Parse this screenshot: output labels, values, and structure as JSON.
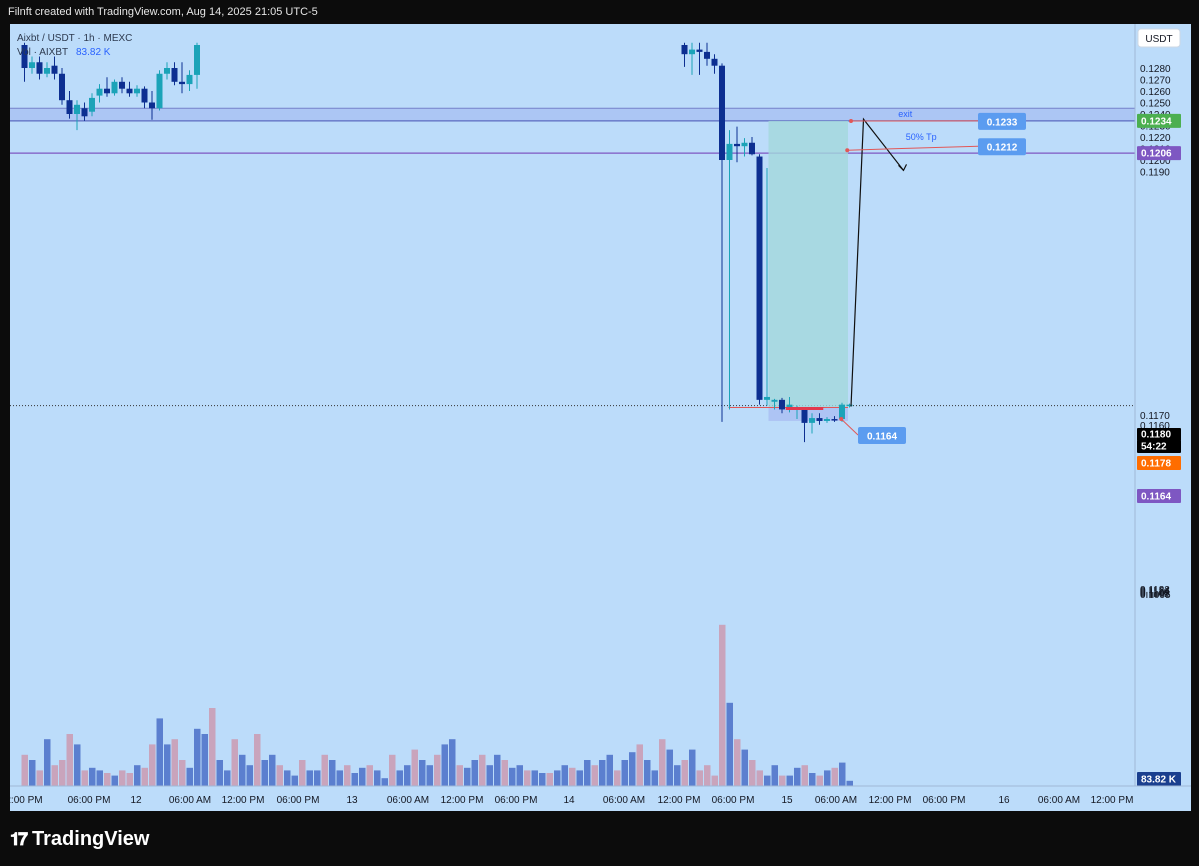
{
  "header": {
    "caption": "Filnft created with TradingView.com, Aug 14, 2025 21:05 UTC-5"
  },
  "legend": {
    "symbol_line": "Aixbt / USDT · 1h · MEXC",
    "volume_label": "Vol · AIXBT",
    "volume_value": "83.82 K"
  },
  "axis": {
    "currency": "USDT"
  },
  "chart_data": {
    "type": "candlestick",
    "title": "",
    "y_scale": "price (upper), compressed below 0.1140",
    "y_ticks": [
      "0.1280",
      "0.1270",
      "0.1260",
      "0.1250",
      "0.1240",
      "0.1230",
      "0.1220",
      "0.1210",
      "0.1200",
      "0.1190",
      "0.1170",
      "0.1160",
      "0.1150",
      "0.1140",
      "0.1132",
      "0.1124",
      "0.1116",
      "0.1109",
      "0.1102",
      "0.1095"
    ],
    "x_ticks": [
      "2:00 PM",
      "06:00 PM",
      "12",
      "06:00 AM",
      "12:00 PM",
      "06:00 PM",
      "13",
      "06:00 AM",
      "12:00 PM",
      "06:00 PM",
      "14",
      "06:00 AM",
      "12:00 PM",
      "06:00 PM",
      "15",
      "06:00 AM",
      "12:00 PM",
      "06:00 PM",
      "16",
      "06:00 AM",
      "12:00 PM"
    ],
    "price_badges": [
      {
        "value": "0.1234",
        "color": "#4caf50"
      },
      {
        "value": "0.1206",
        "color": "#7e57c2"
      },
      {
        "value": "0.1180",
        "color": "#000000"
      },
      {
        "value": "54:22",
        "color": "#000000"
      },
      {
        "value": "0.1178",
        "color": "#ff6d00"
      },
      {
        "value": "0.1164",
        "color": "#7e57c2"
      },
      {
        "value": "83.82 K",
        "color": "#1a3f8f"
      }
    ],
    "levels": [
      {
        "price": 0.1234,
        "color": "#5c6bc0"
      },
      {
        "price": 0.1206,
        "color": "#7e57c2"
      },
      {
        "price": 0.118,
        "color": "#333333",
        "style": "dotted"
      }
    ],
    "zone": {
      "low": 0.1234,
      "high": 0.1245
    },
    "annotations": [
      {
        "text": "exit"
      },
      {
        "text": "50% Tp"
      }
    ],
    "callouts": [
      "0.1233",
      "0.1212",
      "0.1164"
    ],
    "candles": [
      {
        "i": 0,
        "o": 0.13,
        "h": 0.1302,
        "l": 0.1268,
        "c": 0.128
      },
      {
        "i": 1,
        "o": 0.128,
        "h": 0.129,
        "l": 0.1275,
        "c": 0.1285
      },
      {
        "i": 2,
        "o": 0.1285,
        "h": 0.129,
        "l": 0.127,
        "c": 0.1275
      },
      {
        "i": 3,
        "o": 0.1275,
        "h": 0.1285,
        "l": 0.1272,
        "c": 0.128
      },
      {
        "i": 4,
        "o": 0.1282,
        "h": 0.129,
        "l": 0.127,
        "c": 0.1275
      },
      {
        "i": 5,
        "o": 0.1275,
        "h": 0.128,
        "l": 0.1248,
        "c": 0.1252
      },
      {
        "i": 6,
        "o": 0.1252,
        "h": 0.126,
        "l": 0.1236,
        "c": 0.124
      },
      {
        "i": 7,
        "o": 0.124,
        "h": 0.1252,
        "l": 0.1226,
        "c": 0.1248
      },
      {
        "i": 8,
        "o": 0.1245,
        "h": 0.125,
        "l": 0.1234,
        "c": 0.1238
      },
      {
        "i": 9,
        "o": 0.1242,
        "h": 0.1258,
        "l": 0.1238,
        "c": 0.1254
      },
      {
        "i": 10,
        "o": 0.1256,
        "h": 0.1266,
        "l": 0.125,
        "c": 0.1262
      },
      {
        "i": 11,
        "o": 0.1262,
        "h": 0.1272,
        "l": 0.1255,
        "c": 0.1258
      },
      {
        "i": 12,
        "o": 0.1258,
        "h": 0.127,
        "l": 0.1256,
        "c": 0.1268
      },
      {
        "i": 13,
        "o": 0.1268,
        "h": 0.1272,
        "l": 0.1258,
        "c": 0.1262
      },
      {
        "i": 14,
        "o": 0.1262,
        "h": 0.1268,
        "l": 0.1255,
        "c": 0.1258
      },
      {
        "i": 15,
        "o": 0.1258,
        "h": 0.1265,
        "l": 0.1255,
        "c": 0.1262
      },
      {
        "i": 16,
        "o": 0.1262,
        "h": 0.1264,
        "l": 0.1245,
        "c": 0.125
      },
      {
        "i": 17,
        "o": 0.125,
        "h": 0.126,
        "l": 0.1235,
        "c": 0.1245
      },
      {
        "i": 18,
        "o": 0.1245,
        "h": 0.1278,
        "l": 0.1243,
        "c": 0.1275
      },
      {
        "i": 19,
        "o": 0.1275,
        "h": 0.1285,
        "l": 0.127,
        "c": 0.128
      },
      {
        "i": 20,
        "o": 0.128,
        "h": 0.1285,
        "l": 0.1265,
        "c": 0.1268
      },
      {
        "i": 21,
        "o": 0.1268,
        "h": 0.1285,
        "l": 0.1258,
        "c": 0.1266
      },
      {
        "i": 22,
        "o": 0.1266,
        "h": 0.1278,
        "l": 0.126,
        "c": 0.1274
      },
      {
        "i": 23,
        "o": 0.1274,
        "h": 0.1302,
        "l": 0.1262,
        "c": 0.13
      },
      {
        "i": 88,
        "o": 0.13,
        "h": 0.1302,
        "l": 0.1281,
        "c": 0.1292
      },
      {
        "i": 89,
        "o": 0.1292,
        "h": 0.1302,
        "l": 0.1274,
        "c": 0.1296
      },
      {
        "i": 90,
        "o": 0.1296,
        "h": 0.1302,
        "l": 0.1274,
        "c": 0.1294
      },
      {
        "i": 91,
        "o": 0.1294,
        "h": 0.1302,
        "l": 0.1282,
        "c": 0.1288
      },
      {
        "i": 92,
        "o": 0.1288,
        "h": 0.1292,
        "l": 0.1275,
        "c": 0.1282
      },
      {
        "i": 93,
        "o": 0.1282,
        "h": 0.1284,
        "l": 0.1163,
        "c": 0.12
      },
      {
        "i": 94,
        "o": 0.12,
        "h": 0.1226,
        "l": 0.1176,
        "c": 0.1214
      },
      {
        "i": 95,
        "o": 0.1214,
        "h": 0.1229,
        "l": 0.1198,
        "c": 0.1212
      },
      {
        "i": 96,
        "o": 0.1212,
        "h": 0.1219,
        "l": 0.1203,
        "c": 0.1215
      },
      {
        "i": 97,
        "o": 0.1215,
        "h": 0.122,
        "l": 0.1204,
        "c": 0.1205
      },
      {
        "i": 98,
        "o": 0.1203,
        "h": 0.1205,
        "l": 0.1181,
        "c": 0.1186
      },
      {
        "i": 99,
        "o": 0.1186,
        "h": 0.1193,
        "l": 0.118,
        "c": 0.1189
      },
      {
        "i": 100,
        "o": 0.1184,
        "h": 0.1187,
        "l": 0.1176,
        "c": 0.1186
      },
      {
        "i": 101,
        "o": 0.1186,
        "h": 0.1188,
        "l": 0.1172,
        "c": 0.1176
      },
      {
        "i": 102,
        "o": 0.1176,
        "h": 0.1189,
        "l": 0.1173,
        "c": 0.1181
      },
      {
        "i": 103,
        "o": 0.1177,
        "h": 0.118,
        "l": 0.1166,
        "c": 0.1178
      },
      {
        "i": 104,
        "o": 0.1177,
        "h": 0.1178,
        "l": 0.1142,
        "c": 0.1162
      },
      {
        "i": 105,
        "o": 0.1162,
        "h": 0.1172,
        "l": 0.1151,
        "c": 0.1167
      },
      {
        "i": 106,
        "o": 0.1167,
        "h": 0.1172,
        "l": 0.116,
        "c": 0.1164
      },
      {
        "i": 107,
        "o": 0.1164,
        "h": 0.1168,
        "l": 0.1162,
        "c": 0.1166
      },
      {
        "i": 108,
        "o": 0.1166,
        "h": 0.1169,
        "l": 0.1163,
        "c": 0.1165
      },
      {
        "i": 109,
        "o": 0.1166,
        "h": 0.1183,
        "l": 0.1163,
        "c": 0.1181
      },
      {
        "i": 110,
        "o": 0.118,
        "h": 0.1182,
        "l": 0.1178,
        "c": 0.1181
      }
    ],
    "volume": [
      {
        "i": 0,
        "v": 6.0
      },
      {
        "i": 1,
        "v": 5.0
      },
      {
        "i": 2,
        "v": 3.0
      },
      {
        "i": 3,
        "v": 9.0
      },
      {
        "i": 4,
        "v": 4.0
      },
      {
        "i": 5,
        "v": 5.0
      },
      {
        "i": 6,
        "v": 10.0
      },
      {
        "i": 7,
        "v": 8.0
      },
      {
        "i": 8,
        "v": 3.0
      },
      {
        "i": 9,
        "v": 3.5
      },
      {
        "i": 10,
        "v": 3.0
      },
      {
        "i": 11,
        "v": 2.5
      },
      {
        "i": 12,
        "v": 2.0
      },
      {
        "i": 13,
        "v": 3.0
      },
      {
        "i": 14,
        "v": 2.5
      },
      {
        "i": 15,
        "v": 4.0
      },
      {
        "i": 16,
        "v": 3.5
      },
      {
        "i": 17,
        "v": 8.0
      },
      {
        "i": 18,
        "v": 13.0
      },
      {
        "i": 19,
        "v": 8.0
      },
      {
        "i": 20,
        "v": 9.0
      },
      {
        "i": 21,
        "v": 5.0
      },
      {
        "i": 22,
        "v": 3.5
      },
      {
        "i": 23,
        "v": 11.0
      },
      {
        "i": 24,
        "v": 10.0
      },
      {
        "i": 25,
        "v": 15.0
      },
      {
        "i": 26,
        "v": 5.0
      },
      {
        "i": 27,
        "v": 3.0
      },
      {
        "i": 28,
        "v": 9.0
      },
      {
        "i": 29,
        "v": 6.0
      },
      {
        "i": 30,
        "v": 4.0
      },
      {
        "i": 31,
        "v": 10.0
      },
      {
        "i": 32,
        "v": 5.0
      },
      {
        "i": 33,
        "v": 6.0
      },
      {
        "i": 34,
        "v": 4.0
      },
      {
        "i": 35,
        "v": 3.0
      },
      {
        "i": 36,
        "v": 2.0
      },
      {
        "i": 37,
        "v": 5.0
      },
      {
        "i": 38,
        "v": 3.0
      },
      {
        "i": 39,
        "v": 3.0
      },
      {
        "i": 40,
        "v": 6.0
      },
      {
        "i": 41,
        "v": 5.0
      },
      {
        "i": 42,
        "v": 3.0
      },
      {
        "i": 43,
        "v": 4.0
      },
      {
        "i": 44,
        "v": 2.5
      },
      {
        "i": 45,
        "v": 3.5
      },
      {
        "i": 46,
        "v": 4.0
      },
      {
        "i": 47,
        "v": 3.0
      },
      {
        "i": 48,
        "v": 1.5
      },
      {
        "i": 49,
        "v": 6.0
      },
      {
        "i": 50,
        "v": 3.0
      },
      {
        "i": 51,
        "v": 4.0
      },
      {
        "i": 52,
        "v": 7.0
      },
      {
        "i": 53,
        "v": 5.0
      },
      {
        "i": 54,
        "v": 4.0
      },
      {
        "i": 55,
        "v": 6.0
      },
      {
        "i": 56,
        "v": 8.0
      },
      {
        "i": 57,
        "v": 9.0
      },
      {
        "i": 58,
        "v": 4.0
      },
      {
        "i": 59,
        "v": 3.5
      },
      {
        "i": 60,
        "v": 5.0
      },
      {
        "i": 61,
        "v": 6.0
      },
      {
        "i": 62,
        "v": 4.0
      },
      {
        "i": 63,
        "v": 6.0
      },
      {
        "i": 64,
        "v": 5.0
      },
      {
        "i": 65,
        "v": 3.5
      },
      {
        "i": 66,
        "v": 4.0
      },
      {
        "i": 67,
        "v": 3.0
      },
      {
        "i": 68,
        "v": 3.0
      },
      {
        "i": 69,
        "v": 2.5
      },
      {
        "i": 70,
        "v": 2.5
      },
      {
        "i": 71,
        "v": 3.0
      },
      {
        "i": 72,
        "v": 4.0
      },
      {
        "i": 73,
        "v": 3.5
      },
      {
        "i": 74,
        "v": 3.0
      },
      {
        "i": 75,
        "v": 5.0
      },
      {
        "i": 76,
        "v": 4.0
      },
      {
        "i": 77,
        "v": 5.0
      },
      {
        "i": 78,
        "v": 6.0
      },
      {
        "i": 79,
        "v": 3.0
      },
      {
        "i": 80,
        "v": 5.0
      },
      {
        "i": 81,
        "v": 6.5
      },
      {
        "i": 82,
        "v": 8.0
      },
      {
        "i": 83,
        "v": 5.0
      },
      {
        "i": 84,
        "v": 3.0
      },
      {
        "i": 85,
        "v": 9.0
      },
      {
        "i": 86,
        "v": 7.0
      },
      {
        "i": 87,
        "v": 4.0
      },
      {
        "i": 88,
        "v": 5.0
      },
      {
        "i": 89,
        "v": 7.0
      },
      {
        "i": 90,
        "v": 3.0
      },
      {
        "i": 91,
        "v": 4.0
      },
      {
        "i": 92,
        "v": 2.0
      },
      {
        "i": 93,
        "v": 31.0
      },
      {
        "i": 94,
        "v": 16.0
      },
      {
        "i": 95,
        "v": 9.0
      },
      {
        "i": 96,
        "v": 7.0
      },
      {
        "i": 97,
        "v": 5.0
      },
      {
        "i": 98,
        "v": 3.0
      },
      {
        "i": 99,
        "v": 2.0
      },
      {
        "i": 100,
        "v": 4.0
      },
      {
        "i": 101,
        "v": 2.0
      },
      {
        "i": 102,
        "v": 2.0
      },
      {
        "i": 103,
        "v": 3.5
      },
      {
        "i": 104,
        "v": 4.0
      },
      {
        "i": 105,
        "v": 2.5
      },
      {
        "i": 106,
        "v": 2.0
      },
      {
        "i": 107,
        "v": 3.0
      },
      {
        "i": 108,
        "v": 3.5
      },
      {
        "i": 109,
        "v": 4.5
      },
      {
        "i": 110,
        "v": 1.0
      }
    ]
  },
  "footer": {
    "brand": "TradingView"
  },
  "colors": {
    "background": "#bcdcfa",
    "candle_up": "#1ba3b8",
    "candle_down": "#0d2f91",
    "volume_up": "#5b7fcf",
    "volume_down": "#c9a4bc"
  }
}
